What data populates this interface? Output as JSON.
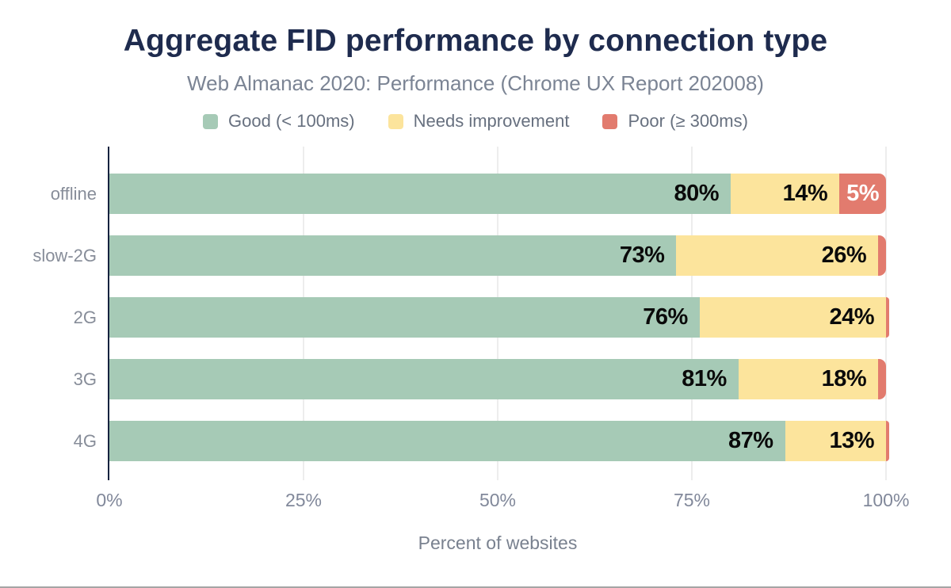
{
  "header": {
    "title": "Aggregate FID performance by connection type",
    "subtitle": "Web Almanac 2020: Performance (Chrome UX Report 202008)"
  },
  "legend": {
    "items": [
      {
        "key": "good",
        "label": "Good (< 100ms)",
        "color": "#a6cab6"
      },
      {
        "key": "ni",
        "label": "Needs improvement",
        "color": "#fce49c"
      },
      {
        "key": "poor",
        "label": "Poor (≥ 300ms)",
        "color": "#e27b6e"
      }
    ]
  },
  "chart_data": {
    "type": "bar",
    "orientation": "horizontal",
    "stacked": true,
    "title": "Aggregate FID performance by connection type",
    "subtitle": "Web Almanac 2020: Performance (Chrome UX Report 202008)",
    "xlabel": "Percent of websites",
    "xlim": [
      0,
      100
    ],
    "grid": true,
    "grid_color": "#ededed",
    "axis_color": "#16233f",
    "legend_position": "top",
    "categories": [
      "offline",
      "slow-2G",
      "2G",
      "3G",
      "4G"
    ],
    "series": [
      {
        "name": "Good (< 100ms)",
        "key": "good",
        "color": "#a6cab6",
        "label_color": "#0a0a0a",
        "values": [
          80,
          73,
          76,
          81,
          87
        ],
        "labels": [
          "80%",
          "73%",
          "76%",
          "81%",
          "87%"
        ]
      },
      {
        "name": "Needs improvement",
        "key": "ni",
        "color": "#fce49c",
        "label_color": "#0a0a0a",
        "values": [
          14,
          26,
          24,
          18,
          13
        ],
        "labels": [
          "14%",
          "26%",
          "24%",
          "18%",
          "13%"
        ]
      },
      {
        "name": "Poor (≥ 300ms)",
        "key": "poor",
        "color": "#e27b6e",
        "label_color": "#ffffff",
        "values": [
          5,
          1,
          0,
          1,
          0
        ],
        "labels": [
          "5%",
          "",
          "",
          "",
          ""
        ]
      }
    ],
    "x_ticks": [
      {
        "label": "0%",
        "value": 0
      },
      {
        "label": "25%",
        "value": 25
      },
      {
        "label": "50%",
        "value": 50
      },
      {
        "label": "75%",
        "value": 75
      },
      {
        "label": "100%",
        "value": 100
      }
    ]
  }
}
